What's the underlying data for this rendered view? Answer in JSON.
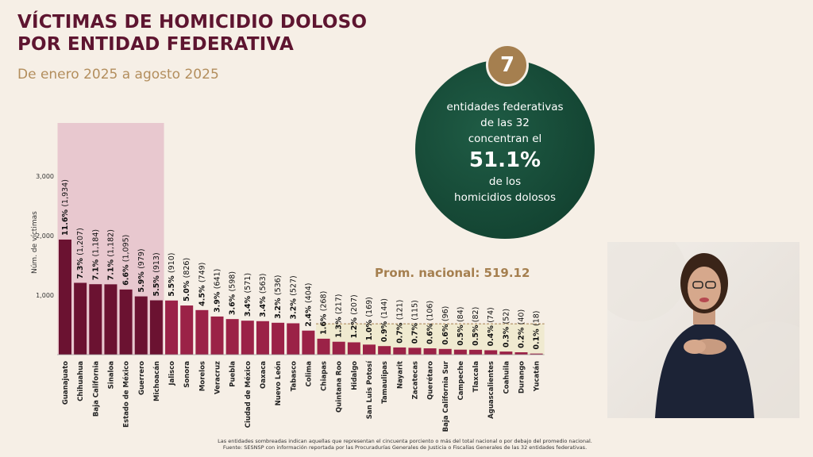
{
  "title_line1": "VÍCTIMAS DE HOMICIDIO DOLOSO",
  "title_line2": "POR ENTIDAD FEDERATIVA",
  "subtitle": "De enero 2025 a agosto 2025",
  "badge_number": "7",
  "callout": {
    "line1": "entidades federativas",
    "line2": "de las 32",
    "line3": "concentran el",
    "percent": "51.1%",
    "line4": "de los",
    "line5": "homicidios dolosos"
  },
  "national_average_label": "Prom. nacional: 519.12",
  "footnote_line1": "Las entidades sombreadas indican aquellas que representan el cincuenta porciento o más del total nacional o por debajo del promedio nacional.",
  "footnote_line2": "Fuente: SESNSP con información reportada por las Procuradurías Generales de Justicia o Fiscalías Generales de las 32 entidades federativas.",
  "colors": {
    "bar_top": "#6b1231",
    "bar_rest": "#9b2247",
    "highlight_top": "#e8c8cf",
    "highlight_low": "#f0ead0",
    "gold": "#a57f4f",
    "title": "#5e1530"
  },
  "chart_data": {
    "type": "bar",
    "ylabel": "Núm. de víctimas",
    "ylim": [
      0,
      3000
    ],
    "yticks": [
      "1,000",
      "2,000",
      "3,000"
    ],
    "average": 519.12,
    "categories": [
      "Guanajuato",
      "Chihuahua",
      "Baja California",
      "Sinaloa",
      "Estado de México",
      "Guerrero",
      "Michoacán",
      "Jalisco",
      "Sonora",
      "Morelos",
      "Veracruz",
      "Puebla",
      "Ciudad de México",
      "Oaxaca",
      "Nuevo León",
      "Tabasco",
      "Colima",
      "Chiapas",
      "Quintana Roo",
      "Hidalgo",
      "San Luis Potosí",
      "Tamaulipas",
      "Nayarit",
      "Zacatecas",
      "Querétaro",
      "Baja California Sur",
      "Campeche",
      "Tlaxcala",
      "Aguascalientes",
      "Coahuila",
      "Durango",
      "Yucatán"
    ],
    "values": [
      1934,
      1207,
      1184,
      1182,
      1095,
      979,
      913,
      910,
      826,
      749,
      641,
      598,
      571,
      563,
      536,
      527,
      404,
      268,
      217,
      207,
      169,
      144,
      121,
      115,
      106,
      96,
      84,
      82,
      74,
      52,
      40,
      18
    ],
    "pct_labels": [
      "11.6%",
      "7.3%",
      "7.1%",
      "7.1%",
      "6.6%",
      "5.9%",
      "5.5%",
      "5.5%",
      "5.0%",
      "4.5%",
      "3.9%",
      "3.6%",
      "3.4%",
      "3.4%",
      "3.2%",
      "3.2%",
      "2.4%",
      "1.6%",
      "1.3%",
      "1.2%",
      "1.0%",
      "0.9%",
      "0.7%",
      "0.7%",
      "0.6%",
      "0.6%",
      "0.5%",
      "0.5%",
      "0.4%",
      "0.3%",
      "0.2%",
      "0.1%"
    ],
    "count_labels": [
      "(1,934)",
      "(1,207)",
      "(1,184)",
      "(1,182)",
      "(1,095)",
      "(979)",
      "(913)",
      "(910)",
      "(826)",
      "(749)",
      "(641)",
      "(598)",
      "(571)",
      "(563)",
      "(536)",
      "(527)",
      "(404)",
      "(268)",
      "(217)",
      "(207)",
      "(169)",
      "(144)",
      "(121)",
      "(115)",
      "(106)",
      "(96)",
      "(84)",
      "(82)",
      "(74)",
      "(52)",
      "(40)",
      "(18)"
    ],
    "highlight_top_count": 7,
    "highlight_low_from": 17
  }
}
